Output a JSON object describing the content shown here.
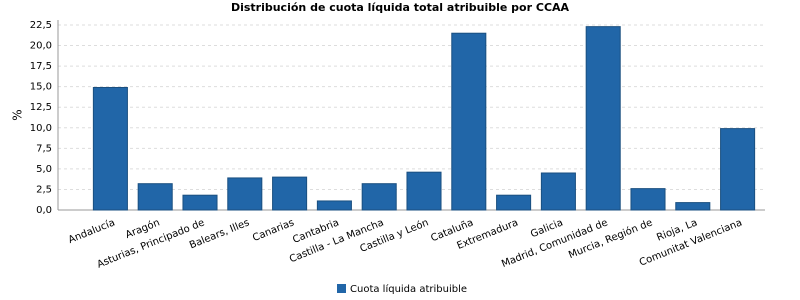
{
  "chart_data": {
    "type": "bar",
    "title": "Distribución de cuota líquida total atribuible por CCAA",
    "y_label": "%",
    "categories": [
      "Andalucía",
      "Aragón",
      "Asturias, Principado de",
      "Balears, Illes",
      "Canarias",
      "Cantabria",
      "Castilla - La Mancha",
      "Castilla y León",
      "Cataluña",
      "Extremadura",
      "Galicia",
      "Madrid, Comunidad de",
      "Murcia, Región de",
      "Rioja, La",
      "Comunitat Valenciana"
    ],
    "series": [
      {
        "name": "Cuota líquida atribuible",
        "color": "#2166a8",
        "values": [
          14.9,
          3.2,
          1.8,
          3.9,
          4.0,
          1.1,
          3.2,
          4.6,
          21.5,
          1.8,
          4.5,
          22.3,
          2.6,
          0.9,
          9.9
        ]
      }
    ],
    "ylim": [
      0,
      22.5
    ],
    "yticks": [
      {
        "value": 0,
        "label": "0,0"
      },
      {
        "value": 2.5,
        "label": "2,5"
      },
      {
        "value": 5,
        "label": "5,0"
      },
      {
        "value": 7.5,
        "label": "7,5"
      },
      {
        "value": 10,
        "label": "10,0"
      },
      {
        "value": 12.5,
        "label": "12,5"
      },
      {
        "value": 15,
        "label": "15,0"
      },
      {
        "value": 17.5,
        "label": "17,5"
      },
      {
        "value": 20,
        "label": "20,0"
      },
      {
        "value": 22.5,
        "label": "22,5"
      }
    ],
    "grid": true,
    "legend": "bottom"
  }
}
